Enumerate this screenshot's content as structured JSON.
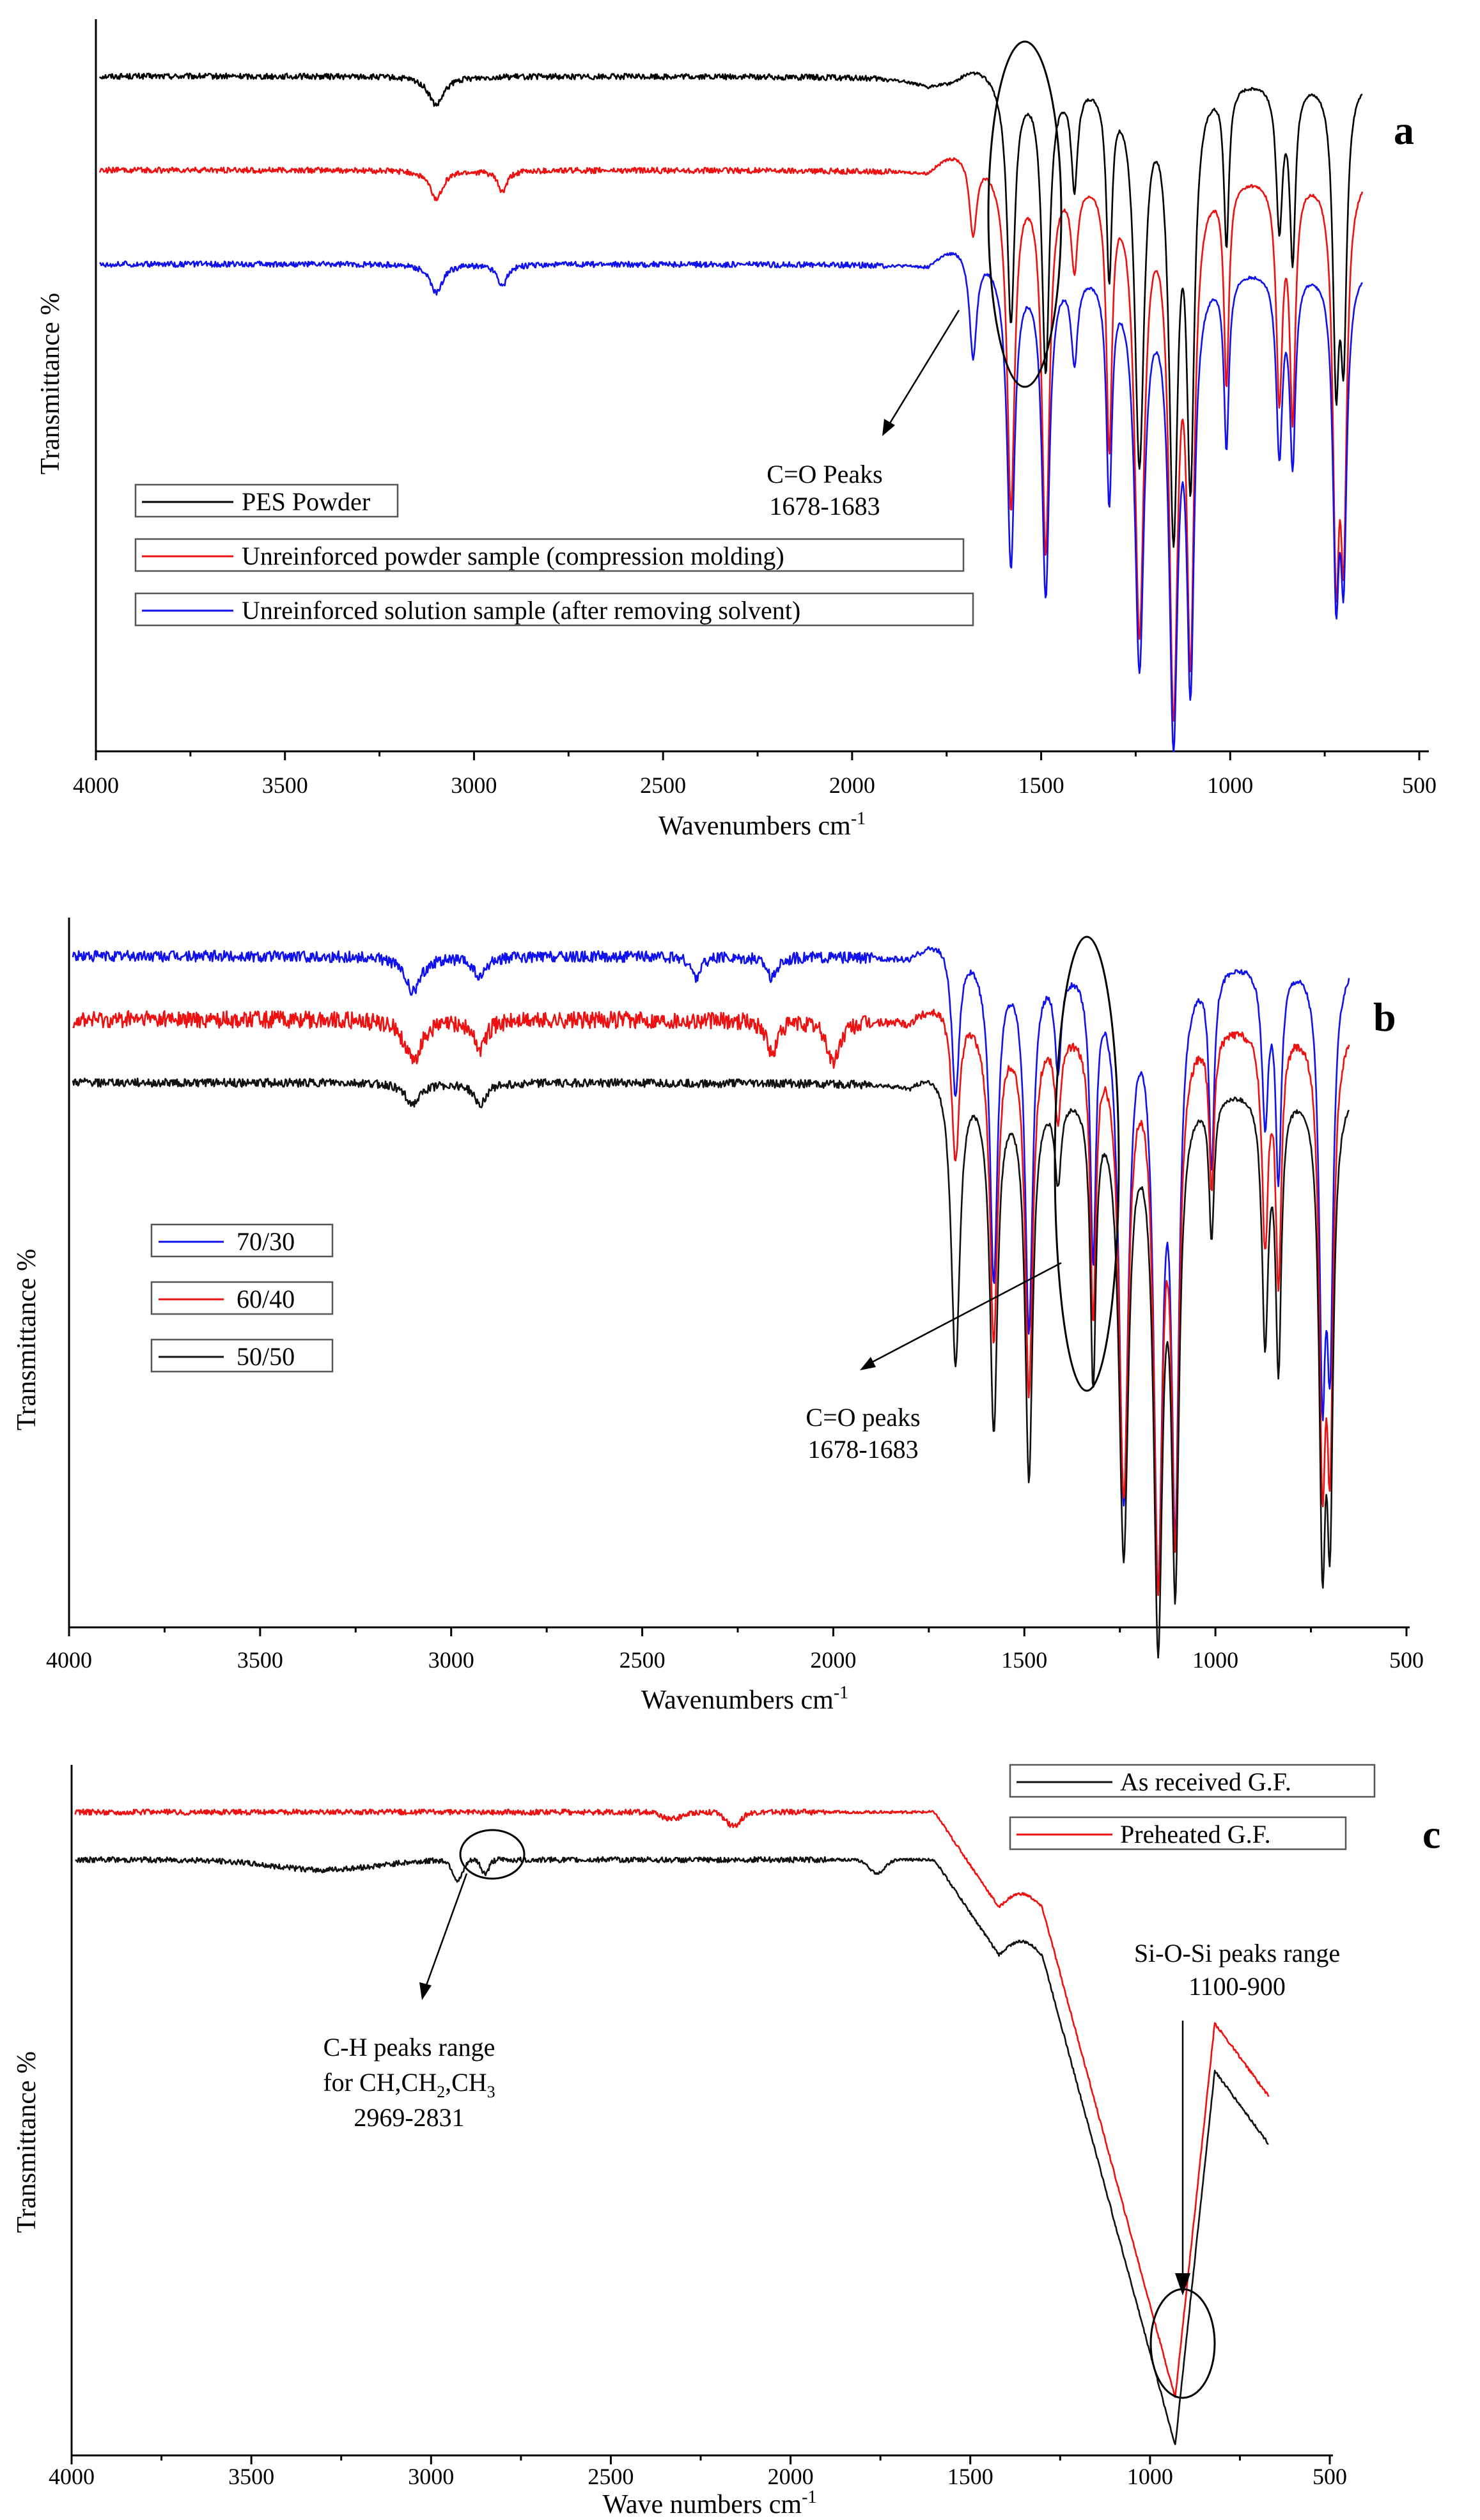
{
  "chart_data": [
    {
      "panel": "a",
      "type": "line",
      "xlabel": "Wavenumbers cm",
      "xlabel_sup": "-1",
      "ylabel": "Transmittance %",
      "xlim": [
        4000,
        500
      ],
      "xticks": [
        4000,
        3500,
        3000,
        2500,
        2000,
        1500,
        1000,
        500
      ],
      "y_ticks_shown": false,
      "legend_position": "lower-left",
      "series": [
        {
          "name": "PES Powder",
          "color": "#000000",
          "baseline": 0.93,
          "noise": 0.004,
          "features": [
            [
              3100,
              0.04,
              25
            ],
            [
              1735,
              0.03,
              60
            ],
            [
              1580,
              0.33,
              12
            ],
            [
              1488,
              0.4,
              12
            ],
            [
              1412,
              0.14,
              10
            ],
            [
              1320,
              0.26,
              9
            ],
            [
              1240,
              0.52,
              15
            ],
            [
              1150,
              0.6,
              14
            ],
            [
              1105,
              0.52,
              12
            ],
            [
              1010,
              0.22,
              8
            ],
            [
              870,
              0.2,
              10
            ],
            [
              835,
              0.24,
              9
            ],
            [
              720,
              0.38,
              10
            ],
            [
              700,
              0.34,
              10
            ]
          ]
        },
        {
          "name": "Unreinforced powder sample (compression molding)",
          "color": "#ee1111",
          "baseline": 0.8,
          "noise": 0.004,
          "features": [
            [
              3100,
              0.04,
              20
            ],
            [
              2925,
              0.03,
              15
            ],
            [
              1680,
              0.11,
              12
            ],
            [
              1580,
              0.46,
              12
            ],
            [
              1488,
              0.52,
              12
            ],
            [
              1412,
              0.12,
              10
            ],
            [
              1320,
              0.36,
              9
            ],
            [
              1240,
              0.62,
              15
            ],
            [
              1150,
              0.7,
              14
            ],
            [
              1105,
              0.62,
              12
            ],
            [
              1010,
              0.28,
              8
            ],
            [
              870,
              0.3,
              10
            ],
            [
              835,
              0.32,
              9
            ],
            [
              720,
              0.5,
              10
            ],
            [
              700,
              0.46,
              10
            ]
          ]
        },
        {
          "name": "Unreinforced solution sample (after removing solvent)",
          "color": "#1111ee",
          "baseline": 0.67,
          "noise": 0.004,
          "features": [
            [
              3100,
              0.04,
              20
            ],
            [
              2925,
              0.03,
              15
            ],
            [
              1680,
              0.15,
              12
            ],
            [
              1580,
              0.41,
              12
            ],
            [
              1488,
              0.45,
              12
            ],
            [
              1412,
              0.12,
              10
            ],
            [
              1320,
              0.31,
              9
            ],
            [
              1240,
              0.54,
              15
            ],
            [
              1150,
              0.62,
              14
            ],
            [
              1105,
              0.54,
              12
            ],
            [
              1010,
              0.24,
              8
            ],
            [
              870,
              0.25,
              10
            ],
            [
              835,
              0.26,
              9
            ],
            [
              720,
              0.41,
              10
            ],
            [
              700,
              0.38,
              10
            ]
          ]
        }
      ],
      "annotation": {
        "text_line1": "C=O Peaks",
        "text_line2": "1678-1683"
      },
      "panel_label": "a"
    },
    {
      "panel": "b",
      "type": "line",
      "xlabel": "Wavenumbers cm",
      "xlabel_sup": "-1",
      "ylabel": "Transmittance %",
      "xlim": [
        4000,
        500
      ],
      "xticks": [
        4000,
        3500,
        3000,
        2500,
        2000,
        1500,
        1000,
        500
      ],
      "y_ticks_shown": false,
      "legend_position": "center-left",
      "series": [
        {
          "name": "70/30",
          "color": "#1111ee",
          "baseline": 0.95,
          "noise": 0.008,
          "features": [
            [
              3100,
              0.05,
              25
            ],
            [
              2925,
              0.03,
              20
            ],
            [
              2360,
              0.03,
              15
            ],
            [
              2160,
              0.03,
              15
            ],
            [
              1680,
              0.22,
              12
            ],
            [
              1580,
              0.45,
              12
            ],
            [
              1488,
              0.52,
              12
            ],
            [
              1412,
              0.14,
              10
            ],
            [
              1320,
              0.4,
              9
            ],
            [
              1240,
              0.75,
              15
            ],
            [
              1150,
              0.83,
              14
            ],
            [
              1105,
              0.74,
              12
            ],
            [
              1010,
              0.28,
              8
            ],
            [
              870,
              0.22,
              10
            ],
            [
              835,
              0.3,
              9
            ],
            [
              720,
              0.55,
              10
            ],
            [
              700,
              0.5,
              10
            ]
          ]
        },
        {
          "name": "60/40",
          "color": "#ee1111",
          "baseline": 0.86,
          "noise": 0.012,
          "features": [
            [
              3100,
              0.06,
              25
            ],
            [
              2925,
              0.04,
              20
            ],
            [
              2160,
              0.05,
              15
            ],
            [
              2000,
              0.06,
              20
            ],
            [
              1680,
              0.22,
              12
            ],
            [
              1580,
              0.45,
              12
            ],
            [
              1488,
              0.52,
              12
            ],
            [
              1412,
              0.12,
              10
            ],
            [
              1320,
              0.4,
              9
            ],
            [
              1240,
              0.65,
              15
            ],
            [
              1150,
              0.75,
              14
            ],
            [
              1105,
              0.68,
              12
            ],
            [
              1010,
              0.22,
              8
            ],
            [
              870,
              0.3,
              10
            ],
            [
              835,
              0.35,
              9
            ],
            [
              720,
              0.58,
              10
            ],
            [
              700,
              0.55,
              10
            ]
          ]
        },
        {
          "name": "50/50",
          "color": "#111111",
          "baseline": 0.77,
          "noise": 0.006,
          "features": [
            [
              3100,
              0.03,
              25
            ],
            [
              2925,
              0.03,
              20
            ],
            [
              1680,
              0.42,
              14
            ],
            [
              1580,
              0.48,
              12
            ],
            [
              1488,
              0.55,
              12
            ],
            [
              1412,
              0.12,
              10
            ],
            [
              1320,
              0.4,
              9
            ],
            [
              1240,
              0.65,
              15
            ],
            [
              1150,
              0.75,
              14
            ],
            [
              1105,
              0.66,
              12
            ],
            [
              1010,
              0.2,
              8
            ],
            [
              870,
              0.35,
              10
            ],
            [
              835,
              0.38,
              9
            ],
            [
              720,
              0.6,
              10
            ],
            [
              700,
              0.56,
              10
            ]
          ]
        }
      ],
      "annotation": {
        "text_line1": "C=O peaks",
        "text_line2": "1678-1683"
      },
      "panel_label": "b"
    },
    {
      "panel": "c",
      "type": "line",
      "xlabel": "Wave numbers cm",
      "xlabel_sup": "-1",
      "ylabel": "Transmittance %",
      "xlim": [
        4000,
        500
      ],
      "xticks": [
        4000,
        3500,
        3000,
        2500,
        2000,
        1500,
        1000,
        500
      ],
      "y_ticks_shown": false,
      "legend_position": "top-right",
      "series": [
        {
          "name": "As received G.F.",
          "color": "#111111",
          "baseline": 0.87,
          "noise": 0.004,
          "features": [
            [
              3300,
              0.015,
              200
            ],
            [
              2925,
              0.03,
              20
            ],
            [
              2850,
              0.02,
              15
            ],
            [
              1760,
              0.02,
              30
            ]
          ]
        },
        {
          "name": "Preheated G.F.",
          "color": "#ee1111",
          "baseline": 0.94,
          "noise": 0.004,
          "features": [
            [
              2330,
              0.01,
              40
            ],
            [
              2160,
              0.02,
              30
            ]
          ]
        }
      ],
      "annotation": {
        "ch_line1": "C-H peaks range",
        "ch_line2_prefix": "for CH,CH",
        "ch_sub1": "2",
        "ch_mid": ",CH",
        "ch_sub2": "3",
        "ch_line3": "2969-2831",
        "si_line1": "Si-O-Si peaks range",
        "si_line2": "1100-900"
      },
      "panel_label": "c"
    }
  ]
}
